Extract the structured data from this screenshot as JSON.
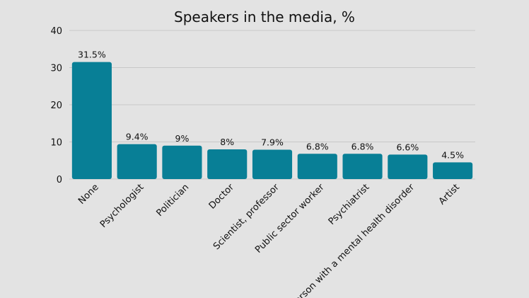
{
  "chart_data": {
    "type": "bar",
    "title": "Speakers in the media, %",
    "xlabel": "",
    "ylabel": "",
    "ylim": [
      0,
      40
    ],
    "yticks": [
      0,
      10,
      20,
      30,
      40
    ],
    "grid": true,
    "color": "#087f96",
    "categories": [
      "None",
      "Psychologist",
      "Politician",
      "Doctor",
      "Scientist, professor",
      "Public sector worker",
      "Psychiatrist",
      "Person with a mental health disorder",
      "Artist"
    ],
    "values": [
      31.5,
      9.4,
      9,
      8,
      7.9,
      6.8,
      6.8,
      6.6,
      4.5
    ],
    "data_labels": [
      "31.5%",
      "9.4%",
      "9%",
      "8%",
      "7.9%",
      "6.8%",
      "6.8%",
      "6.6%",
      "4.5%"
    ]
  }
}
